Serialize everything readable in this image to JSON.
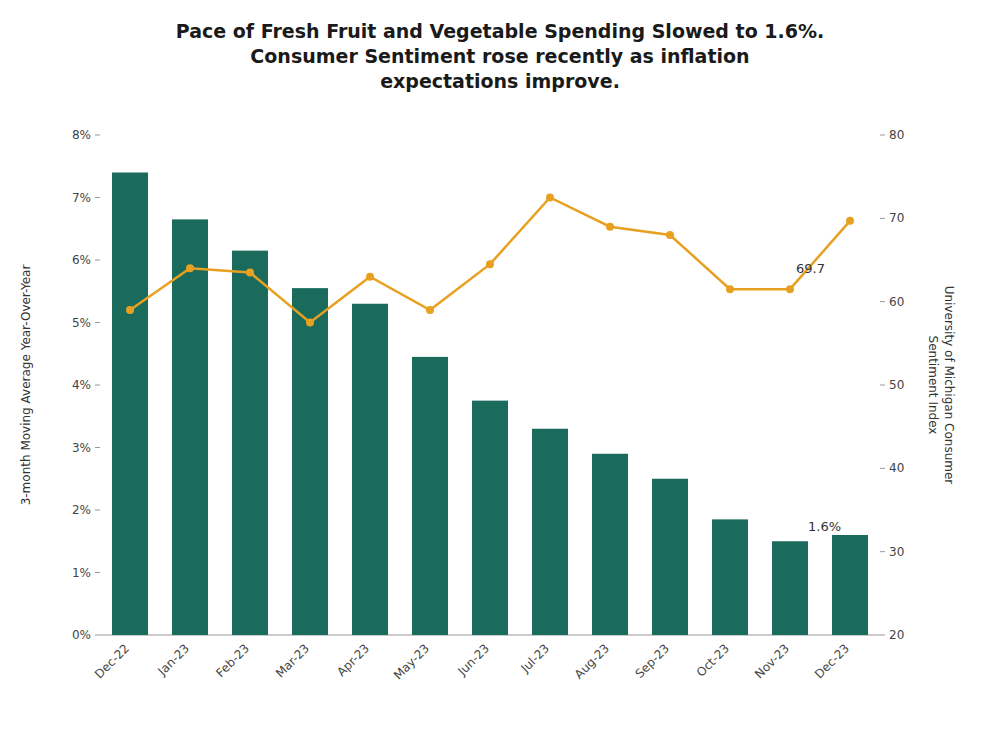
{
  "chart_data": {
    "type": "bar",
    "title": "Pace of Fresh Fruit and Vegetable Spending Slowed to 1.6%.\nConsumer Sentiment rose recently as inflation\nexpectations improve.",
    "categories": [
      "Dec-22",
      "Jan-23",
      "Feb-23",
      "Mar-23",
      "Apr-23",
      "May-23",
      "Jun-23",
      "Jul-23",
      "Aug-23",
      "Sep-23",
      "Oct-23",
      "Nov-23",
      "Dec-23"
    ],
    "series": [
      {
        "type": "bar",
        "color": "#1a6b5c",
        "values": [
          7.4,
          6.65,
          6.15,
          5.55,
          5.3,
          4.45,
          3.75,
          3.3,
          2.9,
          2.5,
          1.85,
          1.5,
          1.6
        ]
      },
      {
        "type": "line",
        "axis": "y2",
        "color": "#e8a020",
        "marker": "circle",
        "line_style": "solid",
        "values": [
          59.0,
          64.0,
          63.5,
          57.5,
          63.0,
          59.0,
          64.5,
          72.5,
          69.0,
          68.0,
          61.5,
          61.5,
          69.7
        ]
      }
    ],
    "ylabel": "3-month Moving Average Year-Over-Year",
    "y2label": "University of Michigan Consumer\nSentiment Index",
    "ylim": [
      0,
      8
    ],
    "yticks": [
      {
        "value": 0,
        "label": "0%"
      },
      {
        "value": 1,
        "label": "1%"
      },
      {
        "value": 2,
        "label": "2%"
      },
      {
        "value": 3,
        "label": "3%"
      },
      {
        "value": 4,
        "label": "4%"
      },
      {
        "value": 5,
        "label": "5%"
      },
      {
        "value": 6,
        "label": "6%"
      },
      {
        "value": 7,
        "label": "7%"
      },
      {
        "value": 8,
        "label": "8%"
      }
    ],
    "y2lim": [
      20,
      80
    ],
    "y2ticks": [
      20,
      30,
      40,
      50,
      60,
      70,
      80
    ],
    "grid": false,
    "annotations": [
      {
        "text": "1.6%",
        "category": "Nov-23",
        "series": 0
      },
      {
        "text": "69.7",
        "category": "Nov-23",
        "series": 1
      }
    ]
  }
}
